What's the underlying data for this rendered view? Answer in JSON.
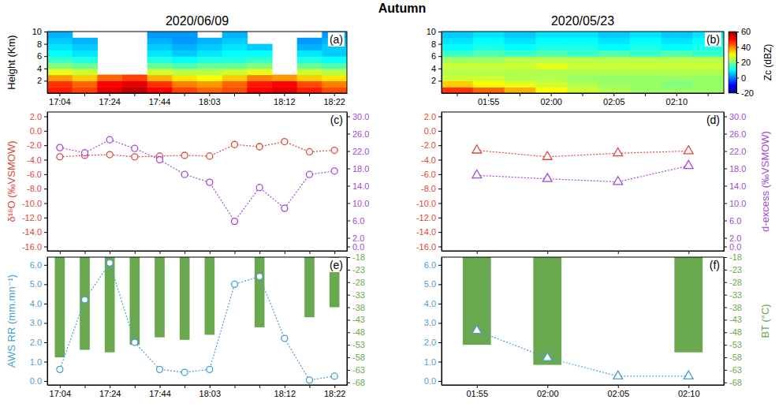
{
  "title": "Autumn",
  "chart_data": [
    {
      "type": "heatmap",
      "title": "2020/06/09",
      "label": "(a)",
      "categories": [
        "17:04",
        null,
        "17:24",
        null,
        "17:44",
        null,
        "18:03",
        null,
        null,
        "18:12",
        null,
        "18:22"
      ],
      "ylabel": "Height (Km)",
      "ylim": [
        0,
        10
      ],
      "yticks": [
        2,
        4,
        6,
        8,
        10
      ],
      "y_edges": [
        0,
        1,
        2,
        3,
        4,
        5,
        6,
        7,
        8,
        9,
        10
      ],
      "cells": [
        [
          48,
          45,
          52,
          55,
          50,
          45,
          42,
          44,
          50,
          52,
          48,
          44
        ],
        [
          46,
          42,
          50,
          52,
          46,
          40,
          38,
          42,
          48,
          50,
          44,
          40
        ],
        [
          38,
          34,
          42,
          45,
          36,
          32,
          30,
          34,
          40,
          38,
          34,
          32
        ],
        [
          28,
          26,
          null,
          null,
          26,
          24,
          24,
          26,
          28,
          null,
          26,
          24
        ],
        [
          20,
          18,
          null,
          null,
          18,
          16,
          18,
          18,
          20,
          null,
          18,
          16
        ],
        [
          14,
          12,
          null,
          null,
          12,
          10,
          12,
          12,
          14,
          null,
          12,
          10
        ],
        [
          10,
          8,
          null,
          null,
          8,
          6,
          8,
          10,
          10,
          null,
          8,
          6
        ],
        [
          8,
          6,
          null,
          null,
          6,
          4,
          6,
          8,
          6,
          null,
          4,
          6
        ],
        [
          6,
          4,
          null,
          null,
          4,
          2,
          4,
          6,
          null,
          null,
          2,
          4
        ],
        [
          4,
          null,
          null,
          null,
          2,
          2,
          null,
          4,
          null,
          null,
          null,
          2
        ]
      ]
    },
    {
      "type": "heatmap",
      "title": "2020/05/23",
      "label": "(b)",
      "categories": [
        null,
        "01:55",
        null,
        "02:00",
        null,
        "02:05",
        null,
        "02:10",
        null
      ],
      "ylim": [
        0,
        10
      ],
      "yticks": [
        2,
        4,
        6,
        8,
        10
      ],
      "y_edges": [
        0,
        1,
        2,
        3,
        4,
        5,
        6,
        7,
        8,
        9,
        10
      ],
      "cells": [
        [
          46,
          42,
          36,
          30,
          26,
          24,
          22,
          22,
          22
        ],
        [
          34,
          30,
          28,
          26,
          24,
          22,
          22,
          20,
          22
        ],
        [
          26,
          26,
          24,
          24,
          22,
          22,
          22,
          22,
          22
        ],
        [
          24,
          24,
          24,
          24,
          24,
          24,
          24,
          24,
          24
        ],
        [
          26,
          26,
          26,
          28,
          26,
          26,
          26,
          26,
          26
        ],
        [
          22,
          22,
          24,
          24,
          24,
          24,
          24,
          24,
          24
        ],
        [
          14,
          16,
          14,
          16,
          14,
          16,
          14,
          16,
          14
        ],
        [
          10,
          12,
          10,
          12,
          12,
          10,
          12,
          10,
          12
        ],
        [
          8,
          10,
          8,
          10,
          10,
          8,
          10,
          8,
          10
        ],
        [
          6,
          8,
          6,
          8,
          8,
          6,
          8,
          6,
          8
        ]
      ],
      "colorbar": {
        "title": "Zc (dBZ)",
        "range": [
          -20,
          60
        ],
        "ticks": [
          -20,
          0,
          20,
          40,
          60
        ]
      }
    },
    {
      "type": "line",
      "label": "(c)",
      "categories": [
        null,
        null,
        null,
        null,
        null,
        null,
        null,
        null,
        null,
        null,
        null,
        null
      ],
      "ylabel": "δ¹⁸O (‰VSMOW)",
      "ylim": [
        -16.6,
        2.6
      ],
      "yticks": [
        {
          "value": -16,
          "label": "-16.0"
        },
        {
          "value": -14,
          "label": "-14.0"
        },
        {
          "value": -12,
          "label": "-12.0"
        },
        {
          "value": -10,
          "label": "-10.0"
        },
        {
          "value": -8,
          "label": "-8.0"
        },
        {
          "value": -6,
          "label": "-6.0"
        },
        {
          "value": -4,
          "label": "-4.0"
        },
        {
          "value": -2,
          "label": "-2.0"
        },
        {
          "value": 0,
          "label": "0.0"
        },
        {
          "value": 2,
          "label": "2.0"
        }
      ],
      "y2lim": [
        -1,
        31
      ],
      "y2ticks": [
        {
          "value": 0,
          "label": "0.0"
        },
        {
          "value": 2,
          "label": "2.0"
        },
        {
          "value": 6,
          "label": "6.0"
        },
        {
          "value": 10,
          "label": "10.0"
        },
        {
          "value": 14,
          "label": "14.0"
        },
        {
          "value": 18,
          "label": "18.0"
        },
        {
          "value": 22,
          "label": "22.0"
        },
        {
          "value": 26,
          "label": "26.0"
        },
        {
          "value": 30,
          "label": "30.0"
        }
      ],
      "series": [
        {
          "color": "#e0473b",
          "marker": "circle",
          "line_style": "dotted",
          "values": [
            -3.6,
            -3.4,
            -3.3,
            -3.6,
            -3.5,
            -3.4,
            -3.5,
            -1.9,
            -2.2,
            -1.5,
            -2.9,
            -2.7
          ]
        },
        {
          "color": "#a24bd4",
          "marker": "circle",
          "line_style": "dotted",
          "axis": "y2",
          "values": [
            22.8,
            21.6,
            24.6,
            22.6,
            20.0,
            16.6,
            14.8,
            5.8,
            13.6,
            8.8,
            16.6,
            17.4
          ]
        }
      ]
    },
    {
      "type": "line",
      "label": "(d)",
      "categories": [
        null,
        null,
        null,
        null
      ],
      "y2label": "d-excess (‰VSMOW)",
      "ylim": [
        -16.6,
        2.6
      ],
      "yticks": [
        {
          "value": -16,
          "label": "-16.0"
        },
        {
          "value": -14,
          "label": "-14.0"
        },
        {
          "value": -12,
          "label": "-12.0"
        },
        {
          "value": -10,
          "label": "-10.0"
        },
        {
          "value": -8,
          "label": "-8.0"
        },
        {
          "value": -6,
          "label": "-6.0"
        },
        {
          "value": -4,
          "label": "-4.0"
        },
        {
          "value": -2,
          "label": "-2.0"
        },
        {
          "value": 0,
          "label": "0.0"
        },
        {
          "value": 2,
          "label": "2.0"
        }
      ],
      "y2lim": [
        -1,
        31
      ],
      "y2ticks": [
        {
          "value": 0,
          "label": "0.0"
        },
        {
          "value": 2,
          "label": "2.0"
        },
        {
          "value": 6,
          "label": "6.0"
        },
        {
          "value": 10,
          "label": "10.0"
        },
        {
          "value": 14,
          "label": "14.0"
        },
        {
          "value": 18,
          "label": "18.0"
        },
        {
          "value": 22,
          "label": "22.0"
        },
        {
          "value": 26,
          "label": "26.0"
        },
        {
          "value": 30,
          "label": "30.0"
        }
      ],
      "series": [
        {
          "color": "#e0473b",
          "marker": "triangle",
          "line_style": "dotted",
          "values": [
            -2.7,
            -3.6,
            -3.1,
            -2.8
          ]
        },
        {
          "color": "#a24bd4",
          "marker": "triangle",
          "line_style": "dotted",
          "axis": "y2",
          "values": [
            16.4,
            15.6,
            14.9,
            18.6
          ]
        }
      ]
    },
    {
      "type": "line",
      "label": "(e)",
      "categories": [
        "17:04",
        null,
        "17:24",
        null,
        "17:44",
        null,
        "18:03",
        null,
        null,
        "18:12",
        null,
        "18:22"
      ],
      "ylabel": "AWS RR (mm.mn⁻¹)",
      "ylim": [
        -0.2,
        6.4
      ],
      "yticks": [
        {
          "value": 0,
          "label": "0.0"
        },
        {
          "value": 1,
          "label": "1.0"
        },
        {
          "value": 2,
          "label": "2.0"
        },
        {
          "value": 3,
          "label": "3.0"
        },
        {
          "value": 4,
          "label": "4.0"
        },
        {
          "value": 5,
          "label": "5.0"
        },
        {
          "value": 6,
          "label": "6.0"
        }
      ],
      "y2lim": [
        -69,
        -18
      ],
      "y2ticks": [
        -68,
        -63,
        -58,
        -53,
        -48,
        -43,
        -38,
        -33,
        -28,
        -23,
        -18
      ],
      "series": [
        {
          "type": "bar",
          "axis": "y2",
          "color": "#6aa84f",
          "values": [
            -58,
            -55,
            -56,
            -53,
            -50,
            -51,
            -49,
            null,
            -46,
            null,
            -42,
            -38
          ]
        },
        {
          "type": "line",
          "color": "#4a9fd0",
          "marker": "circle",
          "line_style": "dotted",
          "values": [
            0.6,
            4.2,
            6.1,
            2.0,
            0.6,
            0.45,
            0.6,
            5.0,
            5.4,
            2.2,
            0.05,
            0.25
          ]
        }
      ]
    },
    {
      "type": "line",
      "label": "(f)",
      "categories": [
        "01:55",
        "02:00",
        "02:05",
        "02:10"
      ],
      "y2label": "BT (°C)",
      "ylim": [
        -0.2,
        6.4
      ],
      "yticks": [
        {
          "value": 0,
          "label": "0.0"
        },
        {
          "value": 1,
          "label": "1.0"
        },
        {
          "value": 2,
          "label": "2.0"
        },
        {
          "value": 3,
          "label": "3.0"
        },
        {
          "value": 4,
          "label": "4.0"
        },
        {
          "value": 5,
          "label": "5.0"
        },
        {
          "value": 6,
          "label": "6.0"
        }
      ],
      "y2lim": [
        -69,
        -18
      ],
      "y2ticks": [
        -68,
        -63,
        -58,
        -53,
        -48,
        -43,
        -38,
        -33,
        -28,
        -23,
        -18
      ],
      "series": [
        {
          "type": "bar",
          "axis": "y2",
          "color": "#6aa84f",
          "values": [
            -53,
            -61,
            null,
            -56
          ]
        },
        {
          "type": "line",
          "color": "#4a9fd0",
          "marker": "triangle",
          "line_style": "dotted",
          "values": [
            2.6,
            1.2,
            0.25,
            0.25
          ]
        }
      ]
    }
  ]
}
